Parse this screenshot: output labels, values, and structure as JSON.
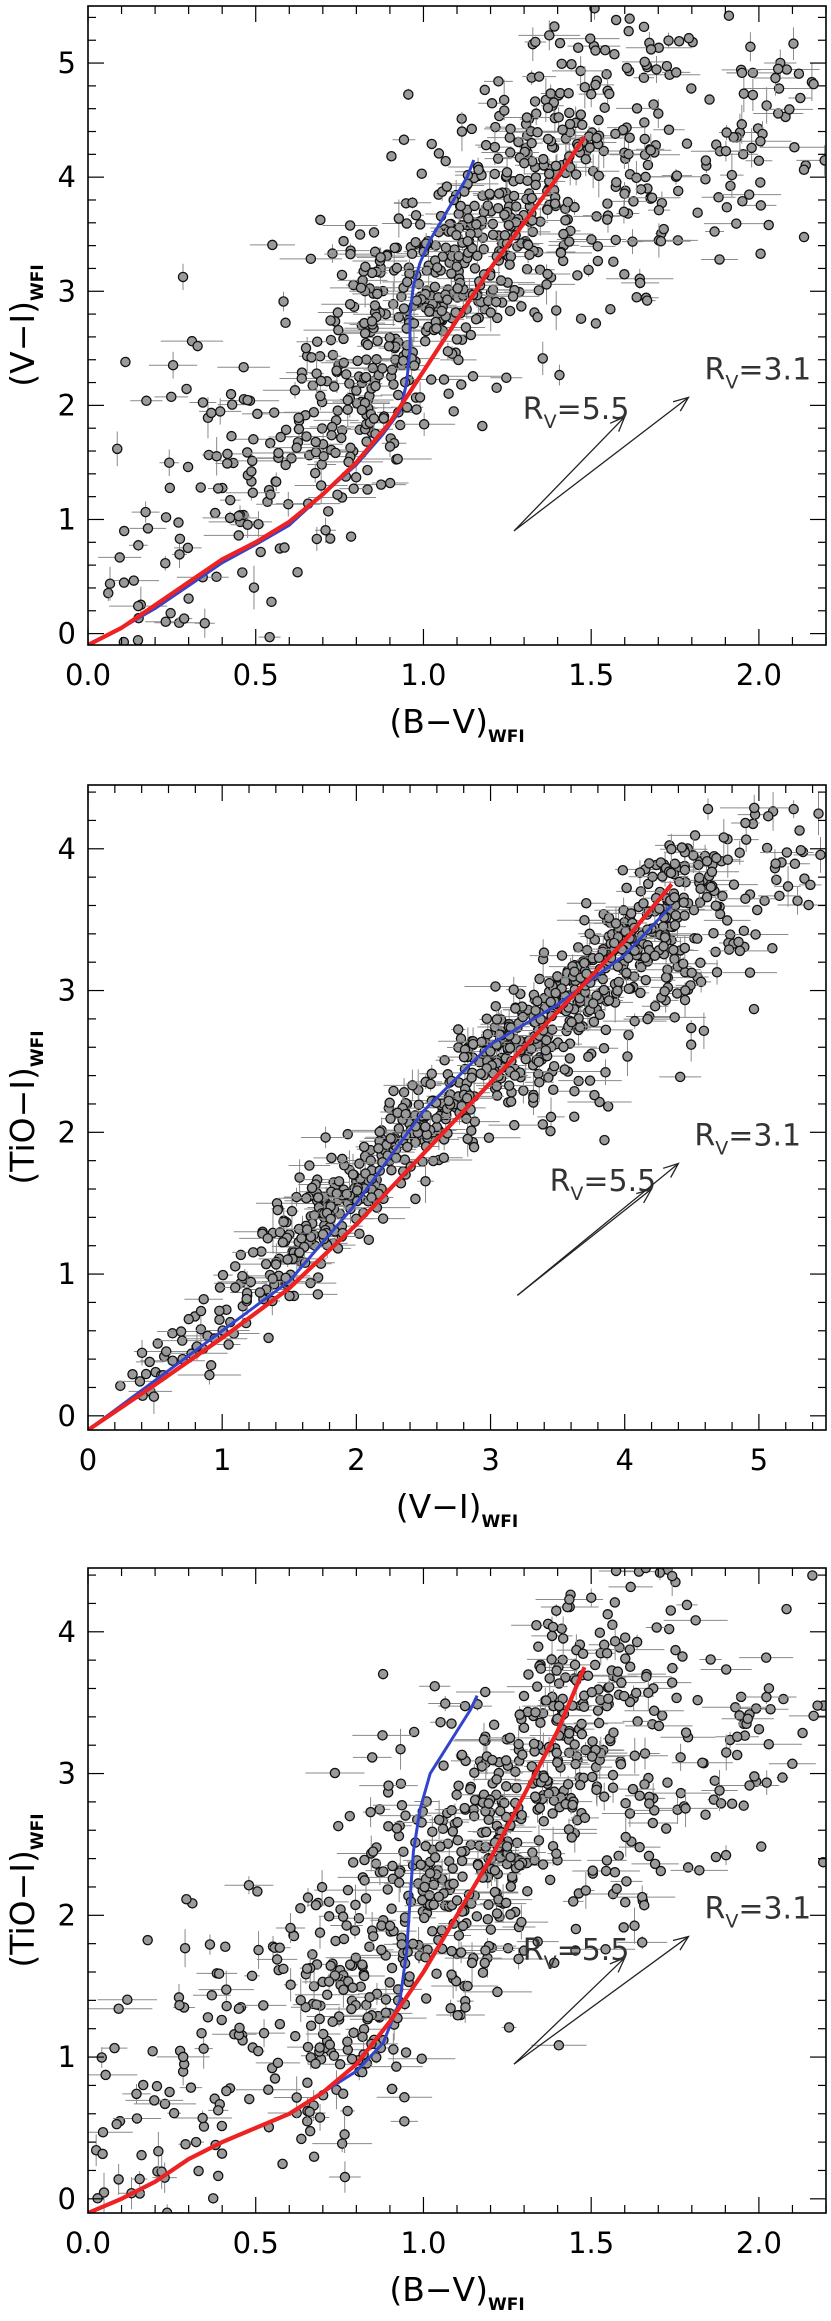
{
  "chart_data": [
    {
      "type": "scatter",
      "id": "top",
      "xlabel": "(B−V)",
      "xlabel_sub": "WFI",
      "ylabel": "(V−I)",
      "ylabel_sub": "WFI",
      "xlim": [
        0.0,
        2.2
      ],
      "ylim": [
        -0.1,
        5.5
      ],
      "xticks": [
        0.0,
        0.5,
        1.0,
        1.5,
        2.0
      ],
      "xtick_labels": [
        "0.0",
        "0.5",
        "1.0",
        "1.5",
        "2.0"
      ],
      "yticks": [
        0,
        1,
        2,
        3,
        4,
        5
      ],
      "ytick_labels": [
        "0",
        "1",
        "2",
        "3",
        "4",
        "5"
      ],
      "stars": {
        "n": 900,
        "seed": 17,
        "clusters": [
          {
            "weight": 0.55,
            "x_from": 0.75,
            "x_to": 1.55,
            "slope": 3.8,
            "y0": -1.0,
            "x_scatter": 0.18,
            "y_scatter": 0.55
          },
          {
            "weight": 0.25,
            "x_from": 1.1,
            "x_to": 2.1,
            "slope": 1.4,
            "y0": 1.6,
            "x_scatter": 0.2,
            "y_scatter": 0.6
          },
          {
            "weight": 0.2,
            "x_from": 0.05,
            "x_to": 1.0,
            "slope": 3.0,
            "y0": 0.1,
            "x_scatter": 0.12,
            "y_scatter": 0.7
          }
        ]
      },
      "series": [
        {
          "name": "model-blue",
          "color": "#3344cc",
          "x": [
            0.0,
            0.1,
            0.2,
            0.3,
            0.4,
            0.5,
            0.6,
            0.7,
            0.8,
            0.88,
            0.93,
            0.95,
            0.96,
            0.96,
            0.97,
            0.99,
            1.02,
            1.06,
            1.1,
            1.13,
            1.15
          ],
          "y": [
            -0.1,
            0.05,
            0.22,
            0.42,
            0.62,
            0.78,
            0.95,
            1.22,
            1.48,
            1.75,
            1.95,
            2.2,
            2.5,
            2.8,
            3.05,
            3.25,
            3.45,
            3.65,
            3.85,
            4.0,
            4.15
          ]
        },
        {
          "name": "model-red",
          "color": "#ee2222",
          "x": [
            0.0,
            0.1,
            0.2,
            0.3,
            0.4,
            0.5,
            0.6,
            0.7,
            0.8,
            0.9,
            1.0,
            1.1,
            1.2,
            1.3,
            1.4,
            1.48
          ],
          "y": [
            -0.1,
            0.05,
            0.25,
            0.45,
            0.65,
            0.8,
            0.98,
            1.22,
            1.5,
            1.85,
            2.3,
            2.75,
            3.2,
            3.6,
            4.0,
            4.35
          ]
        }
      ],
      "reddening_vectors": [
        {
          "label": "R",
          "sub": "V",
          "value": "=5.5",
          "from": [
            1.27,
            0.9
          ],
          "to": [
            1.6,
            1.9
          ]
        },
        {
          "label": "R",
          "sub": "V",
          "value": "=3.1",
          "from": [
            1.27,
            0.9
          ],
          "to": [
            1.79,
            2.07
          ]
        }
      ]
    },
    {
      "type": "scatter",
      "id": "middle",
      "xlabel": "(V−I)",
      "xlabel_sub": "WFI",
      "ylabel": "(TiO−I)",
      "ylabel_sub": "WFI",
      "xlim": [
        0.0,
        5.5
      ],
      "ylim": [
        -0.1,
        4.45
      ],
      "xticks": [
        0,
        1,
        2,
        3,
        4,
        5
      ],
      "xtick_labels": [
        "0",
        "1",
        "2",
        "3",
        "4",
        "5"
      ],
      "yticks": [
        0,
        1,
        2,
        3,
        4
      ],
      "ytick_labels": [
        "0",
        "1",
        "2",
        "3",
        "4"
      ],
      "stars": {
        "n": 900,
        "seed": 29,
        "clusters": [
          {
            "weight": 0.75,
            "x_from": 1.2,
            "x_to": 4.6,
            "slope": 0.86,
            "y0": -0.1,
            "x_scatter": 0.15,
            "y_scatter": 0.2
          },
          {
            "weight": 0.2,
            "x_from": 3.4,
            "x_to": 5.3,
            "slope": 0.78,
            "y0": -0.15,
            "x_scatter": 0.2,
            "y_scatter": 0.35
          },
          {
            "weight": 0.05,
            "x_from": 0.3,
            "x_to": 1.3,
            "slope": 0.7,
            "y0": 0.0,
            "x_scatter": 0.1,
            "y_scatter": 0.15
          }
        ]
      },
      "series": [
        {
          "name": "model-blue",
          "color": "#3344cc",
          "x": [
            0.0,
            0.5,
            1.0,
            1.5,
            2.0,
            2.5,
            3.0,
            3.5,
            4.0,
            4.35
          ],
          "y": [
            -0.1,
            0.25,
            0.6,
            0.95,
            1.5,
            2.15,
            2.62,
            2.9,
            3.25,
            3.6
          ]
        },
        {
          "name": "model-red",
          "color": "#ee2222",
          "x": [
            0.0,
            0.5,
            1.0,
            1.5,
            2.0,
            2.5,
            3.0,
            3.5,
            4.0,
            4.35
          ],
          "y": [
            -0.1,
            0.22,
            0.55,
            0.9,
            1.35,
            1.85,
            2.35,
            2.85,
            3.35,
            3.75
          ]
        }
      ],
      "reddening_vectors": [
        {
          "label": "R",
          "sub": "V",
          "value": "=5.5",
          "from": [
            3.2,
            0.85
          ],
          "to": [
            4.2,
            1.6
          ]
        },
        {
          "label": "R",
          "sub": "V",
          "value": "=3.1",
          "from": [
            3.2,
            0.85
          ],
          "to": [
            4.4,
            1.78
          ]
        }
      ]
    },
    {
      "type": "scatter",
      "id": "bottom",
      "xlabel": "(B−V)",
      "xlabel_sub": "WFI",
      "ylabel": "(TiO−I)",
      "ylabel_sub": "WFI",
      "xlim": [
        0.0,
        2.2
      ],
      "ylim": [
        -0.1,
        4.45
      ],
      "xticks": [
        0.0,
        0.5,
        1.0,
        1.5,
        2.0
      ],
      "xtick_labels": [
        "0.0",
        "0.5",
        "1.0",
        "1.5",
        "2.0"
      ],
      "yticks": [
        0,
        1,
        2,
        3,
        4
      ],
      "ytick_labels": [
        "0",
        "1",
        "2",
        "3",
        "4"
      ],
      "stars": {
        "n": 900,
        "seed": 43,
        "clusters": [
          {
            "weight": 0.55,
            "x_from": 0.75,
            "x_to": 1.55,
            "slope": 3.2,
            "y0": -1.2,
            "x_scatter": 0.18,
            "y_scatter": 0.5
          },
          {
            "weight": 0.25,
            "x_from": 1.1,
            "x_to": 2.1,
            "slope": 1.1,
            "y0": 1.1,
            "x_scatter": 0.2,
            "y_scatter": 0.55
          },
          {
            "weight": 0.2,
            "x_from": 0.05,
            "x_to": 1.0,
            "slope": 2.6,
            "y0": 0.0,
            "x_scatter": 0.12,
            "y_scatter": 0.7
          }
        ]
      },
      "series": [
        {
          "name": "model-blue",
          "color": "#3344cc",
          "x": [
            0.0,
            0.1,
            0.2,
            0.3,
            0.4,
            0.5,
            0.6,
            0.7,
            0.8,
            0.88,
            0.93,
            0.95,
            0.96,
            0.97,
            0.99,
            1.02,
            1.06,
            1.1,
            1.14,
            1.16
          ],
          "y": [
            -0.1,
            0.0,
            0.12,
            0.28,
            0.4,
            0.5,
            0.6,
            0.75,
            0.9,
            1.1,
            1.4,
            1.75,
            2.1,
            2.45,
            2.75,
            3.0,
            3.15,
            3.3,
            3.45,
            3.55
          ]
        },
        {
          "name": "model-red",
          "color": "#ee2222",
          "x": [
            0.0,
            0.1,
            0.2,
            0.3,
            0.4,
            0.5,
            0.6,
            0.7,
            0.8,
            0.9,
            1.0,
            1.1,
            1.2,
            1.3,
            1.4,
            1.48
          ],
          "y": [
            -0.1,
            0.0,
            0.12,
            0.28,
            0.4,
            0.5,
            0.6,
            0.75,
            0.95,
            1.25,
            1.6,
            2.0,
            2.4,
            2.85,
            3.3,
            3.75
          ]
        }
      ],
      "reddening_vectors": [
        {
          "label": "R",
          "sub": "V",
          "value": "=5.5",
          "from": [
            1.27,
            0.95
          ],
          "to": [
            1.6,
            1.7
          ]
        },
        {
          "label": "R",
          "sub": "V",
          "value": "=3.1",
          "from": [
            1.27,
            0.95
          ],
          "to": [
            1.79,
            1.85
          ]
        }
      ]
    }
  ]
}
